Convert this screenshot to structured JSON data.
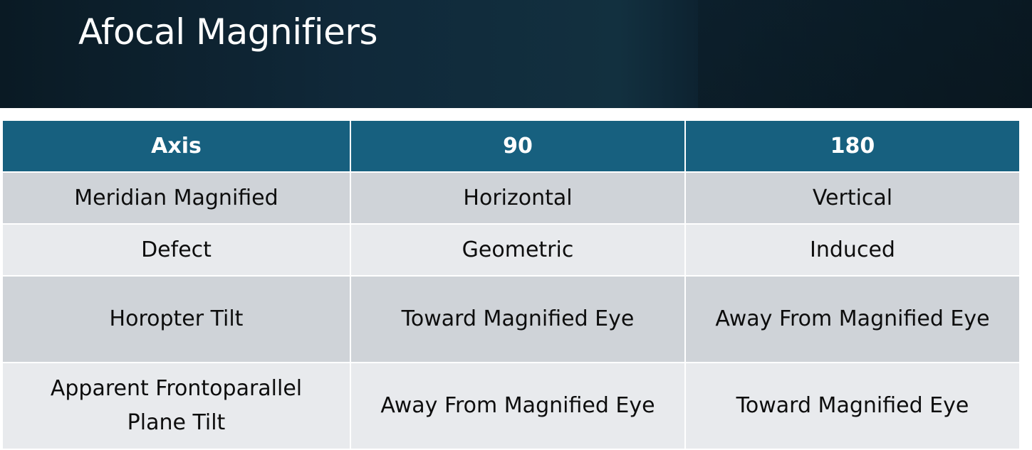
{
  "slide": {
    "title": "Afocal Magnifiers"
  },
  "table": {
    "headers": [
      "Axis",
      "90",
      "180"
    ],
    "rows": [
      [
        "Meridian Magnified",
        "Horizontal",
        "Vertical"
      ],
      [
        "Defect",
        "Geometric",
        "Induced"
      ],
      [
        "Horopter Tilt",
        "Toward Magnified Eye",
        "Away From Magnified Eye"
      ],
      [
        "Apparent Frontoparallel Plane Tilt",
        "Away From Magnified Eye",
        "Toward Magnified Eye"
      ]
    ]
  },
  "colors": {
    "header_band": "#10293a",
    "table_header": "#17607f",
    "row_dark": "#cfd3d8",
    "row_light": "#e8eaed"
  }
}
